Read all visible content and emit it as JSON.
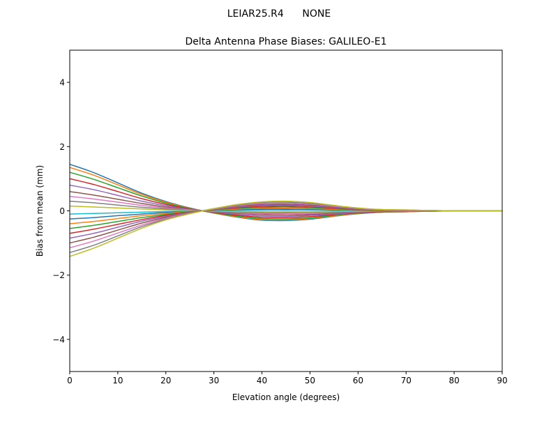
{
  "chart_data": {
    "type": "line",
    "suptitle": "LEIAR25.R4      NONE",
    "title": "Delta Antenna Phase Biases: GALILEO-E1",
    "xlabel": "Elevation angle (degrees)",
    "ylabel": "Bias from mean (mm)",
    "xlim": [
      0,
      90
    ],
    "ylim": [
      -5,
      5
    ],
    "xticks": [
      0,
      10,
      20,
      30,
      40,
      50,
      60,
      70,
      80,
      90
    ],
    "xtick_labels": [
      "0",
      "10",
      "20",
      "30",
      "40",
      "50",
      "60",
      "70",
      "80",
      "90"
    ],
    "yticks": [
      -4,
      -2,
      0,
      2,
      4
    ],
    "ytick_labels": [
      "−4",
      "−2",
      "0",
      "2",
      "4"
    ],
    "grid": false,
    "legend": "none",
    "colors": [
      "#1f77b4",
      "#ff7f0e",
      "#2ca02c",
      "#d62728",
      "#9467bd",
      "#8c564b",
      "#e377c2",
      "#7f7f7f",
      "#bcbd22",
      "#17becf"
    ],
    "x": [
      0,
      5,
      10,
      15,
      20,
      25,
      30,
      35,
      40,
      45,
      50,
      55,
      60,
      65,
      70,
      75,
      80,
      85,
      90
    ],
    "series": [
      {
        "values": [
          1.45,
          1.19,
          0.87,
          0.55,
          0.29,
          0.09,
          -0.07,
          -0.2,
          -0.29,
          -0.3,
          -0.26,
          -0.17,
          -0.09,
          -0.04,
          -0.03,
          -0.01,
          0,
          0,
          0
        ]
      },
      {
        "values": [
          1.35,
          1.11,
          0.81,
          0.51,
          0.27,
          0.08,
          -0.07,
          -0.19,
          -0.27,
          -0.28,
          -0.24,
          -0.16,
          -0.08,
          -0.04,
          -0.03,
          -0.01,
          0,
          0,
          0
        ]
      },
      {
        "values": [
          1.2,
          0.98,
          0.72,
          0.46,
          0.24,
          0.07,
          -0.06,
          -0.17,
          -0.24,
          -0.25,
          -0.22,
          -0.14,
          -0.07,
          -0.04,
          -0.02,
          -0.01,
          0,
          0,
          0
        ]
      },
      {
        "values": [
          1.0,
          0.82,
          0.6,
          0.38,
          0.2,
          0.06,
          -0.05,
          -0.14,
          -0.2,
          -0.21,
          -0.18,
          -0.12,
          -0.06,
          -0.03,
          -0.02,
          -0.01,
          0,
          0,
          0
        ]
      },
      {
        "values": [
          0.8,
          0.66,
          0.48,
          0.3,
          0.16,
          0.05,
          -0.04,
          -0.11,
          -0.16,
          -0.17,
          -0.14,
          -0.1,
          -0.05,
          -0.02,
          -0.02,
          -0.01,
          0,
          0,
          0
        ]
      },
      {
        "values": [
          0.6,
          0.49,
          0.36,
          0.23,
          0.12,
          0.04,
          -0.03,
          -0.08,
          -0.12,
          -0.13,
          -0.11,
          -0.07,
          -0.04,
          -0.02,
          -0.01,
          -0.01,
          0,
          0,
          0
        ]
      },
      {
        "values": [
          0.45,
          0.37,
          0.27,
          0.17,
          0.09,
          0.03,
          -0.02,
          -0.06,
          -0.09,
          -0.09,
          -0.08,
          -0.05,
          -0.03,
          -0.01,
          -0.01,
          0,
          0,
          0,
          0
        ]
      },
      {
        "values": [
          0.3,
          0.25,
          0.18,
          0.11,
          0.06,
          0.02,
          -0.02,
          -0.04,
          -0.06,
          -0.06,
          -0.05,
          -0.04,
          -0.02,
          -0.01,
          -0.01,
          0,
          0,
          0,
          0
        ]
      },
      {
        "values": [
          0.15,
          0.12,
          0.09,
          0.06,
          0.03,
          0.01,
          -0.01,
          -0.02,
          -0.03,
          -0.03,
          -0.03,
          -0.02,
          -0.01,
          0,
          0,
          0,
          0,
          0,
          0
        ]
      },
      {
        "values": [
          -0.1,
          -0.08,
          -0.06,
          -0.04,
          -0.02,
          -0.01,
          0.01,
          0.01,
          0.02,
          0.02,
          0.02,
          0.01,
          0.01,
          0,
          0,
          0,
          0,
          0,
          0
        ]
      },
      {
        "values": [
          -0.25,
          -0.21,
          -0.15,
          -0.1,
          -0.05,
          -0.02,
          0.01,
          0.04,
          0.05,
          0.05,
          0.05,
          0.03,
          0.02,
          0.01,
          0.01,
          0,
          0,
          0,
          0
        ]
      },
      {
        "values": [
          -0.4,
          -0.33,
          -0.24,
          -0.15,
          -0.08,
          -0.02,
          0.02,
          0.06,
          0.08,
          0.08,
          0.07,
          0.05,
          0.02,
          0.01,
          0.01,
          0,
          0,
          0,
          0
        ]
      },
      {
        "values": [
          -0.55,
          -0.45,
          -0.33,
          -0.21,
          -0.11,
          -0.03,
          0.03,
          0.08,
          0.11,
          0.12,
          0.1,
          0.07,
          0.03,
          0.02,
          0.01,
          0.01,
          0,
          0,
          0
        ]
      },
      {
        "values": [
          -0.7,
          -0.57,
          -0.42,
          -0.27,
          -0.14,
          -0.04,
          0.04,
          0.1,
          0.14,
          0.15,
          0.13,
          0.08,
          0.04,
          0.02,
          0.01,
          0.01,
          0,
          0,
          0
        ]
      },
      {
        "values": [
          -0.85,
          -0.7,
          -0.51,
          -0.32,
          -0.17,
          -0.05,
          0.04,
          0.12,
          0.17,
          0.18,
          0.15,
          0.1,
          0.05,
          0.03,
          0.02,
          0.01,
          0,
          0,
          0
        ]
      },
      {
        "values": [
          -1.0,
          -0.82,
          -0.6,
          -0.38,
          -0.2,
          -0.06,
          0.05,
          0.14,
          0.2,
          0.21,
          0.18,
          0.12,
          0.06,
          0.03,
          0.02,
          0.01,
          0,
          0,
          0
        ]
      },
      {
        "values": [
          -1.15,
          -0.94,
          -0.69,
          -0.44,
          -0.23,
          -0.07,
          0.06,
          0.16,
          0.23,
          0.24,
          0.21,
          0.14,
          0.07,
          0.03,
          0.02,
          0.01,
          0,
          0,
          0
        ]
      },
      {
        "values": [
          -1.3,
          -1.07,
          -0.78,
          -0.49,
          -0.26,
          -0.08,
          0.07,
          0.18,
          0.26,
          0.27,
          0.23,
          0.16,
          0.08,
          0.04,
          0.03,
          0.01,
          0,
          0,
          0
        ]
      },
      {
        "values": [
          -1.42,
          -1.16,
          -0.85,
          -0.54,
          -0.28,
          -0.09,
          0.07,
          0.2,
          0.28,
          0.3,
          0.26,
          0.17,
          0.09,
          0.04,
          0.03,
          0.01,
          0,
          0,
          0
        ]
      }
    ]
  }
}
